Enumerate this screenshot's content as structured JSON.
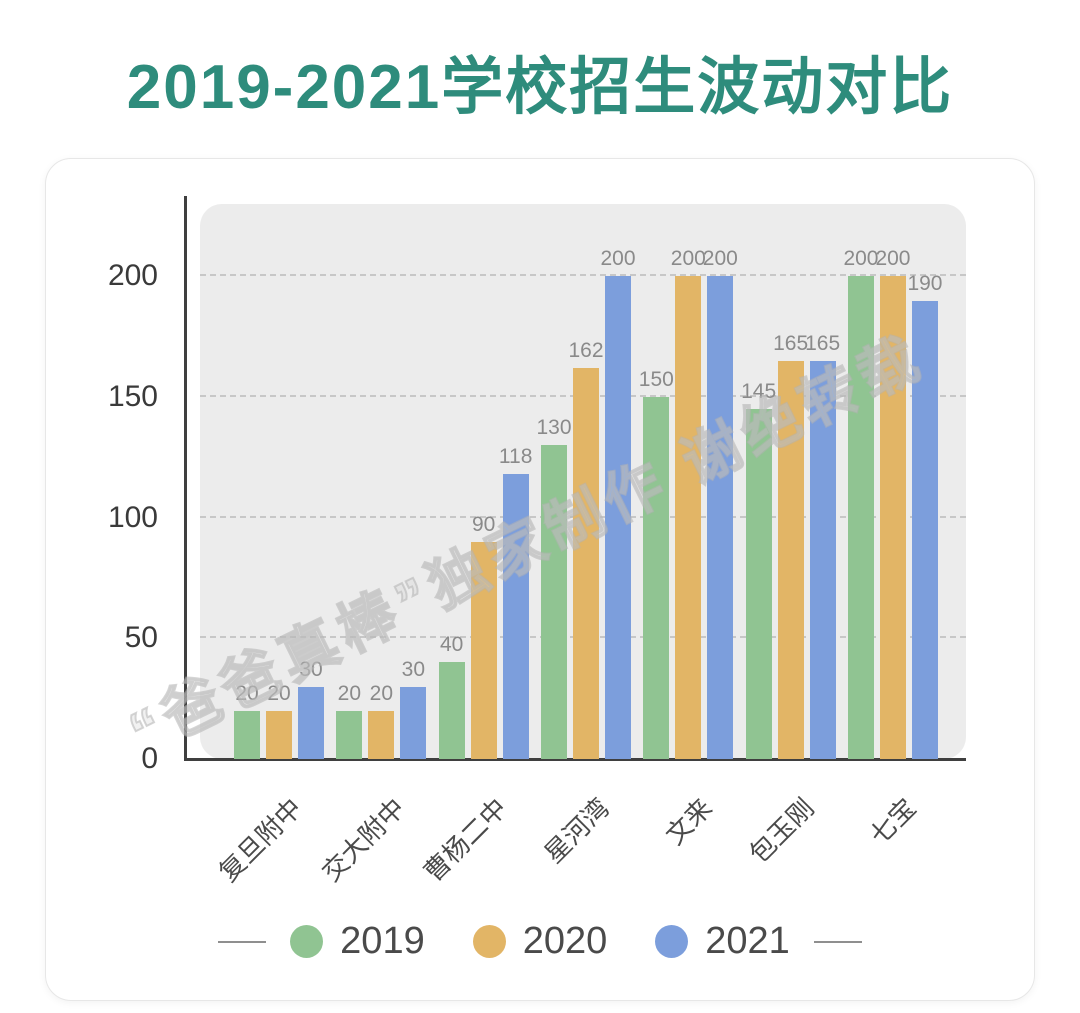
{
  "title": "2019-2021学校招生波动对比",
  "watermark": "“爸爸真棒”独家制作  谢绝转载",
  "colors": {
    "title": "#2E8C7C",
    "bar_2019": "#90C492",
    "bar_2020": "#E2B566",
    "bar_2021": "#7C9EDC",
    "plot_background": "#ececec",
    "value_label": "#8a8a8a"
  },
  "chart_data": {
    "type": "bar",
    "title": "2019-2021学校招生波动对比",
    "categories": [
      "复旦附中",
      "交大附中",
      "曹杨二中",
      "星河湾",
      "文来",
      "包玉刚",
      "七宝"
    ],
    "series": [
      {
        "name": "2019",
        "color": "#90C492",
        "values": [
          20,
          20,
          40,
          130,
          150,
          145,
          200
        ]
      },
      {
        "name": "2020",
        "color": "#E2B566",
        "values": [
          20,
          20,
          90,
          162,
          200,
          165,
          200
        ]
      },
      {
        "name": "2021",
        "color": "#7C9EDC",
        "values": [
          30,
          30,
          118,
          200,
          200,
          165,
          190
        ]
      }
    ],
    "yticks": [
      0,
      50,
      100,
      150,
      200
    ],
    "ylim": [
      0,
      230
    ],
    "xlabel": "",
    "ylabel": "",
    "grid": "dashed-horizontal",
    "legend_position": "bottom"
  }
}
